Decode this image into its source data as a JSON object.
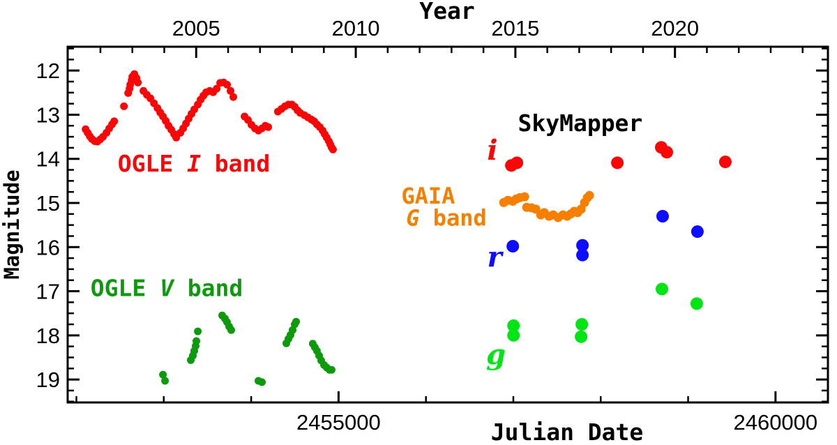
{
  "figure": {
    "background": "#ffffff"
  },
  "chart_data": {
    "type": "scatter",
    "title": "",
    "xlabel": "Julian Date",
    "x2label": "Year",
    "ylabel": "Magnitude",
    "x_range": [
      2451900,
      2460600
    ],
    "y_range": [
      11.46,
      19.52
    ],
    "y_inverted": true,
    "grid": false,
    "legend": "in-plot text annotations",
    "x_axis": {
      "major_ticks_jd": [
        2455000,
        2460000
      ],
      "major_tick_labels": [
        "2455000",
        "2460000"
      ],
      "minor_start": 2452000,
      "minor_end": 2460000,
      "minor_step": 1000
    },
    "x2_axis": {
      "major_ticks_year": [
        2005,
        2010,
        2015,
        2020
      ],
      "major_tick_labels": [
        "2005",
        "2010",
        "2015",
        "2020"
      ],
      "minor_start": 2002,
      "minor_end": 2024,
      "minor_step": 1
    },
    "y_axis": {
      "major_ticks_mag": [
        12,
        13,
        14,
        15,
        16,
        17,
        18,
        19
      ],
      "major_tick_labels": [
        "12",
        "13",
        "14",
        "15",
        "16",
        "17",
        "18",
        "19"
      ],
      "minor_start": 11.5,
      "minor_end": 19.5,
      "minor_step": 0.25
    },
    "series": [
      {
        "id": "ogle-i-band",
        "label": "OGLE I band",
        "color": "#f90606",
        "marker_radius": 5.5,
        "points": [
          [
            2452105,
            13.33
          ],
          [
            2452129,
            13.41
          ],
          [
            2452153,
            13.49
          ],
          [
            2452177,
            13.55
          ],
          [
            2452209,
            13.6
          ],
          [
            2452240,
            13.61
          ],
          [
            2452272,
            13.56
          ],
          [
            2452304,
            13.5
          ],
          [
            2452344,
            13.41
          ],
          [
            2452376,
            13.31
          ],
          [
            2452408,
            13.22
          ],
          [
            2452432,
            13.15
          ],
          [
            2452544,
            12.81
          ],
          [
            2452592,
            12.51
          ],
          [
            2452608,
            12.41
          ],
          [
            2452616,
            12.32
          ],
          [
            2452632,
            12.22
          ],
          [
            2452640,
            12.14
          ],
          [
            2452663,
            12.08
          ],
          [
            2452687,
            12.17
          ],
          [
            2452703,
            12.27
          ],
          [
            2452767,
            12.46
          ],
          [
            2452807,
            12.55
          ],
          [
            2452847,
            12.63
          ],
          [
            2452887,
            12.74
          ],
          [
            2452927,
            12.85
          ],
          [
            2452959,
            12.95
          ],
          [
            2452990,
            13.04
          ],
          [
            2453022,
            13.14
          ],
          [
            2453054,
            13.25
          ],
          [
            2453086,
            13.34
          ],
          [
            2453118,
            13.44
          ],
          [
            2453142,
            13.52
          ],
          [
            2453190,
            13.41
          ],
          [
            2453222,
            13.31
          ],
          [
            2453254,
            13.2
          ],
          [
            2453285,
            13.09
          ],
          [
            2453317,
            12.98
          ],
          [
            2453349,
            12.88
          ],
          [
            2453389,
            12.77
          ],
          [
            2453421,
            12.66
          ],
          [
            2453453,
            12.57
          ],
          [
            2453485,
            12.49
          ],
          [
            2453525,
            12.46
          ],
          [
            2453565,
            12.49
          ],
          [
            2453605,
            12.41
          ],
          [
            2453645,
            12.28
          ],
          [
            2453684,
            12.27
          ],
          [
            2453724,
            12.32
          ],
          [
            2453764,
            12.46
          ],
          [
            2453796,
            12.6
          ],
          [
            2453924,
            13.04
          ],
          [
            2453963,
            13.12
          ],
          [
            2454003,
            13.23
          ],
          [
            2454043,
            13.31
          ],
          [
            2454083,
            13.36
          ],
          [
            2454123,
            13.31
          ],
          [
            2454163,
            13.25
          ],
          [
            2454195,
            13.28
          ],
          [
            2454306,
            12.93
          ],
          [
            2454346,
            12.87
          ],
          [
            2454386,
            12.81
          ],
          [
            2454426,
            12.77
          ],
          [
            2454466,
            12.77
          ],
          [
            2454498,
            12.82
          ],
          [
            2454530,
            12.9
          ],
          [
            2454561,
            12.96
          ],
          [
            2454609,
            13.01
          ],
          [
            2454649,
            13.06
          ],
          [
            2454689,
            13.11
          ],
          [
            2454721,
            13.15
          ],
          [
            2454753,
            13.22
          ],
          [
            2454785,
            13.28
          ],
          [
            2454817,
            13.36
          ],
          [
            2454841,
            13.44
          ],
          [
            2454864,
            13.52
          ],
          [
            2454888,
            13.6
          ],
          [
            2454904,
            13.67
          ],
          [
            2454920,
            13.74
          ],
          [
            2454936,
            13.79
          ]
        ]
      },
      {
        "id": "ogle-v-band",
        "label": "OGLE V band",
        "color": "#0d9b0d",
        "marker_radius": 5.5,
        "points": [
          [
            2452990,
            18.89
          ],
          [
            2453014,
            19.03
          ],
          [
            2453309,
            18.56
          ],
          [
            2453333,
            18.46
          ],
          [
            2453349,
            18.35
          ],
          [
            2453365,
            18.24
          ],
          [
            2453373,
            18.13
          ],
          [
            2453389,
            17.91
          ],
          [
            2453668,
            17.55
          ],
          [
            2453700,
            17.62
          ],
          [
            2453724,
            17.7
          ],
          [
            2453748,
            17.8
          ],
          [
            2453772,
            17.88
          ],
          [
            2454083,
            19.03
          ],
          [
            2454123,
            19.06
          ],
          [
            2454402,
            18.18
          ],
          [
            2454426,
            18.08
          ],
          [
            2454450,
            17.99
          ],
          [
            2454474,
            17.88
          ],
          [
            2454498,
            17.75
          ],
          [
            2454514,
            17.69
          ],
          [
            2454705,
            18.19
          ],
          [
            2454729,
            18.27
          ],
          [
            2454753,
            18.35
          ],
          [
            2454777,
            18.46
          ],
          [
            2454801,
            18.57
          ],
          [
            2454833,
            18.67
          ],
          [
            2454864,
            18.73
          ],
          [
            2454896,
            18.78
          ],
          [
            2454920,
            18.78
          ]
        ]
      },
      {
        "id": "gaia-g-band",
        "label": "GAIA G band",
        "color": "#f77f00",
        "marker_radius": 6.5,
        "points": [
          [
            2456890,
            14.99
          ],
          [
            2456938,
            14.94
          ],
          [
            2456994,
            14.96
          ],
          [
            2457034,
            14.91
          ],
          [
            2457073,
            14.88
          ],
          [
            2457129,
            14.86
          ],
          [
            2457153,
            15.1
          ],
          [
            2457209,
            15.11
          ],
          [
            2457257,
            15.14
          ],
          [
            2457313,
            15.27
          ],
          [
            2457353,
            15.22
          ],
          [
            2457408,
            15.3
          ],
          [
            2457456,
            15.27
          ],
          [
            2457512,
            15.33
          ],
          [
            2457568,
            15.27
          ],
          [
            2457616,
            15.3
          ],
          [
            2457656,
            15.25
          ],
          [
            2457696,
            15.19
          ],
          [
            2457735,
            15.22
          ],
          [
            2457775,
            15.14
          ],
          [
            2457815,
            14.99
          ],
          [
            2457847,
            14.88
          ],
          [
            2457871,
            14.83
          ]
        ]
      },
      {
        "id": "skymapper-i",
        "label": "i",
        "color": "#f90606",
        "marker_radius": 9,
        "points": [
          [
            2456977,
            14.15
          ],
          [
            2457041,
            14.09
          ],
          [
            2458190,
            14.09
          ],
          [
            2458692,
            13.74
          ],
          [
            2458756,
            13.85
          ],
          [
            2459426,
            14.07
          ]
        ]
      },
      {
        "id": "skymapper-r",
        "label": "r",
        "color": "#0d0dff",
        "marker_radius": 9,
        "points": [
          [
            2456994,
            15.98
          ],
          [
            2457791,
            15.96
          ],
          [
            2457791,
            16.18
          ],
          [
            2458708,
            15.3
          ],
          [
            2459107,
            15.65
          ]
        ]
      },
      {
        "id": "skymapper-g",
        "label": "g",
        "color": "#00e513",
        "marker_radius": 9,
        "points": [
          [
            2457002,
            17.78
          ],
          [
            2457002,
            18.0
          ],
          [
            2457783,
            17.75
          ],
          [
            2457775,
            18.03
          ],
          [
            2458700,
            16.95
          ],
          [
            2459099,
            17.28
          ]
        ]
      }
    ],
    "annotations": [
      {
        "id": "ogle-i-label",
        "jd": 2453345,
        "mag": 14.1,
        "color": "#f90606",
        "font": "mono",
        "size": 33,
        "segments": [
          {
            "t": "OGLE ",
            "italic": false
          },
          {
            "t": "I",
            "italic": true
          },
          {
            "t": " band",
            "italic": false
          }
        ]
      },
      {
        "id": "ogle-v-label",
        "jd": 2453033,
        "mag": 16.92,
        "color": "#0d9b0d",
        "font": "mono",
        "size": 33,
        "segments": [
          {
            "t": "OGLE ",
            "italic": false
          },
          {
            "t": "V",
            "italic": true
          },
          {
            "t": " band",
            "italic": false
          }
        ]
      },
      {
        "id": "skymapper-label",
        "jd": 2457766,
        "mag": 13.18,
        "color": "#000000",
        "font": "mono",
        "size": 33,
        "segments": [
          {
            "t": "SkyMapper",
            "italic": false
          }
        ]
      },
      {
        "id": "gaia-label",
        "jd": 2456026,
        "mag": 14.84,
        "color": "#f77f00",
        "font": "mono",
        "size": 32,
        "segments": [
          {
            "t": "GAIA",
            "italic": false
          }
        ]
      },
      {
        "id": "gaia-band-label",
        "jd": 2456234,
        "mag": 15.34,
        "color": "#f77f00",
        "font": "mono",
        "size": 32,
        "segments": [
          {
            "t": "G",
            "italic": true
          },
          {
            "t": " band",
            "italic": false
          }
        ]
      },
      {
        "id": "sky-i-label",
        "jd": 2456761,
        "mag": 13.8,
        "color": "#f90606",
        "font": "serif",
        "size": 40,
        "segments": [
          {
            "t": "i",
            "italic": true
          }
        ]
      },
      {
        "id": "sky-r-label",
        "jd": 2456785,
        "mag": 16.22,
        "color": "#0d0dff",
        "font": "serif",
        "size": 40,
        "segments": [
          {
            "t": "r",
            "italic": true
          }
        ]
      },
      {
        "id": "sky-g-label",
        "jd": 2456801,
        "mag": 18.43,
        "color": "#00e513",
        "font": "serif",
        "size": 40,
        "segments": [
          {
            "t": "g",
            "italic": true
          }
        ]
      }
    ]
  }
}
